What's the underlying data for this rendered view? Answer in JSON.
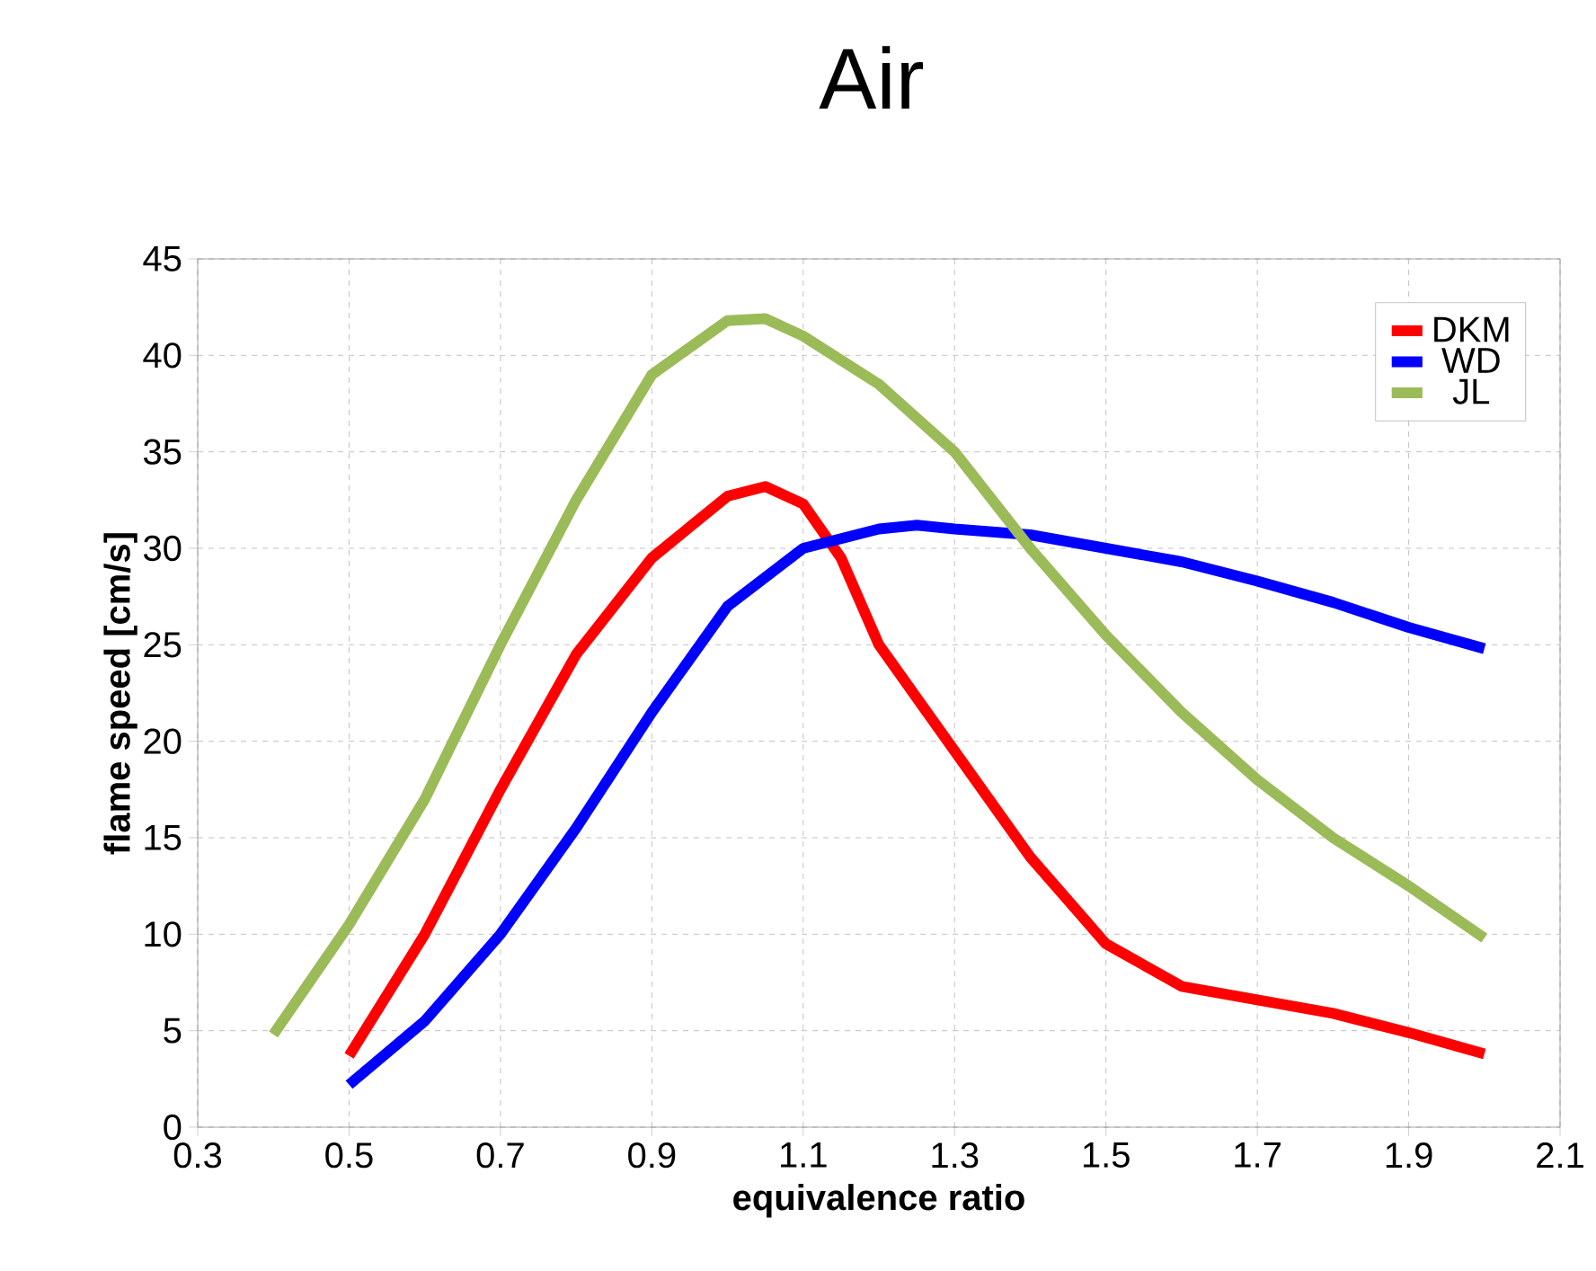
{
  "chart_data": {
    "type": "line",
    "title": "Air",
    "xlabel": "equivalence ratio",
    "ylabel": "flame speed [cm/s]",
    "xlim": [
      0.3,
      2.1
    ],
    "xticks": [
      0.3,
      0.5,
      0.7,
      0.9,
      1.1,
      1.3,
      1.5,
      1.7,
      1.9,
      2.1
    ],
    "ylim": [
      0,
      45
    ],
    "yticks": [
      0,
      5,
      10,
      15,
      20,
      25,
      30,
      35,
      40,
      45
    ],
    "grid": true,
    "legend": "top right",
    "marker": "none",
    "line_style": "solid",
    "series": [
      {
        "name": "DKM",
        "color": "#ff0000",
        "x": [
          0.5,
          0.6,
          0.7,
          0.8,
          0.9,
          1.0,
          1.05,
          1.1,
          1.15,
          1.2,
          1.3,
          1.4,
          1.5,
          1.6,
          1.7,
          1.8,
          1.9,
          2.0
        ],
        "values": [
          3.7,
          10,
          17.5,
          24.5,
          29.5,
          32.7,
          33.2,
          32.3,
          29.5,
          25,
          19.5,
          14,
          9.5,
          7.3,
          6.6,
          5.9,
          4.9,
          3.8
        ]
      },
      {
        "name": "WD",
        "color": "#0000ff",
        "x": [
          0.5,
          0.6,
          0.7,
          0.8,
          0.9,
          1.0,
          1.1,
          1.2,
          1.25,
          1.3,
          1.4,
          1.5,
          1.6,
          1.7,
          1.8,
          1.9,
          2.0
        ],
        "values": [
          2.2,
          5.5,
          10,
          15.5,
          21.5,
          27,
          30,
          31,
          31.2,
          31,
          30.7,
          30,
          29.3,
          28.3,
          27.2,
          25.9,
          24.8
        ]
      },
      {
        "name": "JL",
        "color": "#9bbb59",
        "x": [
          0.4,
          0.5,
          0.6,
          0.7,
          0.8,
          0.9,
          1.0,
          1.05,
          1.1,
          1.2,
          1.3,
          1.4,
          1.5,
          1.6,
          1.7,
          1.8,
          1.9,
          2.0
        ],
        "values": [
          4.8,
          10.5,
          17,
          25,
          32.5,
          39,
          41.8,
          41.9,
          41,
          38.5,
          35,
          30,
          25.5,
          21.5,
          18,
          15,
          12.5,
          9.8
        ]
      }
    ]
  }
}
